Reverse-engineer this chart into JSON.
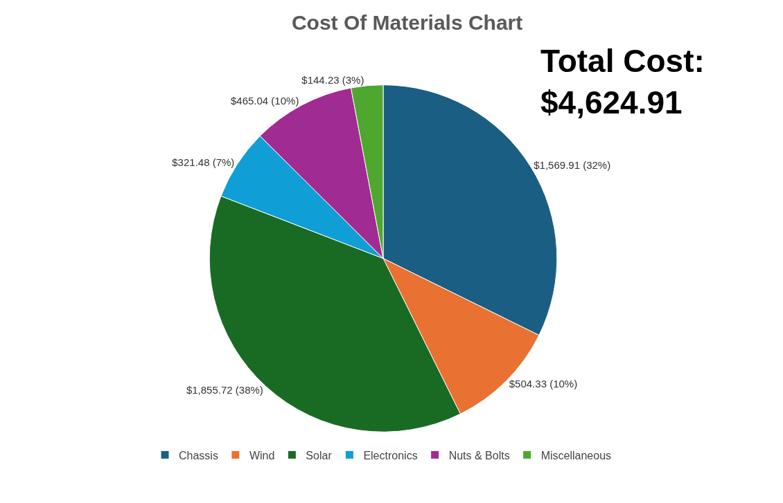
{
  "chart_data": {
    "type": "pie",
    "title": "Cost Of Materials Chart",
    "categories": [
      "Chassis",
      "Wind",
      "Solar",
      "Electronics",
      "Nuts & Bolts",
      "Miscellaneous"
    ],
    "values": [
      1569.91,
      504.33,
      1855.72,
      321.48,
      465.04,
      144.23
    ],
    "colors": [
      "#1a5f83",
      "#e97132",
      "#196b24",
      "#0f9ed5",
      "#a02b93",
      "#4ea72e"
    ],
    "value_labels": [
      "$1,569.91 (32%)",
      "$504.33 (10%)",
      "$1,855.72 (38%)",
      "$321.48 (7%)",
      "$465.04 (10%)",
      "$144.23 (3%)"
    ],
    "legend": "bottom",
    "annotations": [
      "Total Cost:\n$4,624.91"
    ]
  }
}
